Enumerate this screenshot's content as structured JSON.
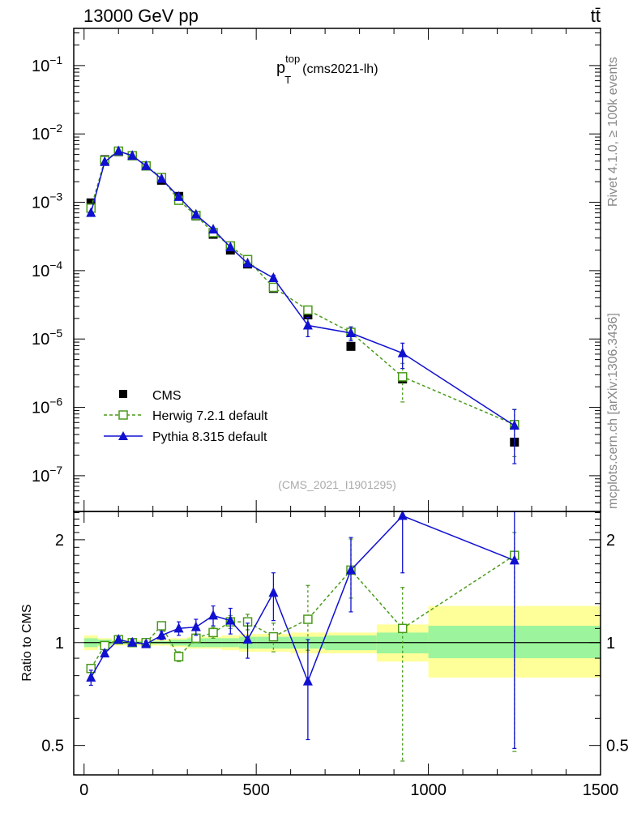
{
  "header": {
    "collision": "13000 GeV pp",
    "process": "tt̄"
  },
  "side_labels": {
    "rivet": "Rivet 4.1.0, ≥ 100k events",
    "mcplots": "mcplots.cern.ch [arXiv:1306.3436]"
  },
  "analysis_id": "(CMS_2021_I1901295)",
  "chart_data": {
    "type": "scatter",
    "title": {
      "base": "p",
      "sup": "top",
      "sub": "T",
      "suffix": "(cms2021-lh)"
    },
    "x": [
      20,
      60,
      100,
      140,
      180,
      225,
      275,
      325,
      375,
      425,
      475,
      550,
      650,
      775,
      925,
      1250
    ],
    "main": {
      "yscale": "log",
      "ylim": [
        3e-08,
        0.35
      ],
      "y_tick_labels": [
        {
          "value": 1e-07,
          "base": "10",
          "exp": "−7"
        },
        {
          "value": 1e-06,
          "base": "10",
          "exp": "−6"
        },
        {
          "value": 1e-05,
          "base": "10",
          "exp": "−5"
        },
        {
          "value": 0.0001,
          "base": "10",
          "exp": "−4"
        },
        {
          "value": 0.001,
          "base": "10",
          "exp": "−3"
        },
        {
          "value": 0.01,
          "base": "10",
          "exp": "−2"
        },
        {
          "value": 0.1,
          "base": "10",
          "exp": "−1"
        }
      ],
      "legend_position": "bottom-left",
      "series": [
        {
          "name": "CMS",
          "color": "#000000",
          "marker": "filled-square",
          "line": "none",
          "values": [
            0.00098,
            0.0042,
            0.0055,
            0.0048,
            0.0034,
            0.0021,
            0.00122,
            0.00063,
            0.00034,
            0.0002,
            0.000125,
            5.5e-05,
            2.25e-05,
            7.8e-06,
            2.6e-06,
            3.1e-07
          ]
        },
        {
          "name": "Herwig 7.2.1 default",
          "color": "#4a9a1a",
          "marker": "open-square",
          "line": "dashed",
          "values": [
            0.00082,
            0.0041,
            0.0056,
            0.0048,
            0.0034,
            0.0023,
            0.00107,
            0.00064,
            0.00036,
            0.00023,
            0.000145,
            5.7e-05,
            2.65e-05,
            1.25e-05,
            2.8e-06,
            5.6e-07
          ],
          "err_lo": [
            0,
            0,
            0,
            0,
            0,
            0,
            0,
            0,
            0,
            0,
            0,
            0,
            0,
            2.5e-06,
            1.6e-06,
            3.7e-07
          ],
          "err_hi": [
            0,
            0,
            0,
            0,
            0,
            0,
            0,
            0,
            0,
            0,
            0,
            0,
            0,
            2.5e-06,
            1.6e-06,
            3.7e-07
          ]
        },
        {
          "name": "Pythia 8.315 default",
          "color": "#1010d0",
          "marker": "filled-triangle",
          "line": "solid",
          "values": [
            0.0007,
            0.0039,
            0.0056,
            0.0048,
            0.0034,
            0.0022,
            0.0012,
            0.00066,
            0.0004,
            0.00022,
            0.000128,
            7.8e-05,
            1.58e-05,
            1.22e-05,
            6.2e-06,
            5.4e-07
          ],
          "err_lo": [
            0,
            0,
            0,
            0,
            0,
            0,
            0,
            0,
            0,
            0,
            0,
            7.7e-06,
            5e-06,
            2.8e-06,
            2.5e-06,
            3.9e-07
          ],
          "err_hi": [
            0,
            0,
            0,
            0,
            0,
            0,
            0,
            0,
            0,
            0,
            0,
            7.7e-06,
            5e-06,
            2.8e-06,
            2.5e-06,
            3.9e-07
          ]
        }
      ]
    },
    "ratio": {
      "ylabel": "Ratio to CMS",
      "yscale": "log",
      "ylim": [
        0.41,
        2.42
      ],
      "y_ticks": [
        0.5,
        1,
        2
      ],
      "y_tick_labels": [
        "0.5",
        "1",
        "2"
      ],
      "band_edges": [
        0,
        40,
        80,
        120,
        160,
        200,
        250,
        300,
        350,
        400,
        450,
        500,
        600,
        700,
        850,
        1000,
        1500
      ],
      "band_stat_lo": [
        0.97,
        0.98,
        0.99,
        0.99,
        0.99,
        0.99,
        0.98,
        0.97,
        0.97,
        0.97,
        0.96,
        0.96,
        0.96,
        0.95,
        0.93,
        0.9
      ],
      "band_stat_hi": [
        1.03,
        1.02,
        1.01,
        1.01,
        1.01,
        1.01,
        1.02,
        1.03,
        1.03,
        1.03,
        1.04,
        1.04,
        1.04,
        1.05,
        1.07,
        1.12
      ],
      "band_tot_lo": [
        0.95,
        0.97,
        0.98,
        0.98,
        0.98,
        0.98,
        0.97,
        0.96,
        0.96,
        0.95,
        0.94,
        0.94,
        0.93,
        0.93,
        0.88,
        0.79
      ],
      "band_tot_hi": [
        1.05,
        1.03,
        1.02,
        1.02,
        1.02,
        1.02,
        1.03,
        1.04,
        1.04,
        1.05,
        1.06,
        1.06,
        1.07,
        1.07,
        1.13,
        1.28
      ],
      "series": [
        {
          "name": "Herwig 7.2.1 default",
          "color": "#4a9a1a",
          "marker": "open-square",
          "line": "dashed",
          "values": [
            0.84,
            0.98,
            1.02,
            1.0,
            1.0,
            1.12,
            0.91,
            1.03,
            1.07,
            1.15,
            1.15,
            1.04,
            1.17,
            1.63,
            1.1,
            1.8
          ],
          "err_lo": [
            0,
            0,
            0,
            0,
            0,
            0.03,
            0.03,
            0.03,
            0.04,
            0.05,
            0.06,
            0.1,
            0.22,
            0.28,
            0.65,
            1.32
          ],
          "err_hi": [
            0,
            0,
            0,
            0,
            0,
            0.03,
            0.03,
            0.03,
            0.04,
            0.05,
            0.06,
            0.1,
            0.3,
            0.38,
            0.35,
            0.3
          ]
        },
        {
          "name": "Pythia 8.315 default",
          "color": "#1010d0",
          "marker": "filled-triangle",
          "line": "solid",
          "values": [
            0.79,
            0.93,
            1.02,
            1.0,
            0.99,
            1.05,
            1.1,
            1.11,
            1.2,
            1.16,
            1.02,
            1.4,
            0.77,
            1.63,
            2.35,
            1.74
          ],
          "err_lo": [
            0.04,
            0.02,
            0.02,
            0.02,
            0.02,
            0.03,
            0.05,
            0.06,
            0.08,
            0.1,
            0.12,
            0.24,
            0.25,
            0.4,
            0.75,
            1.25
          ],
          "err_hi": [
            0.04,
            0.02,
            0.02,
            0.02,
            0.02,
            0.03,
            0.05,
            0.06,
            0.08,
            0.1,
            0.12,
            0.2,
            0.25,
            0.4,
            0.6,
            0.68
          ]
        }
      ]
    },
    "xaxis": {
      "lim": [
        -30,
        1500
      ],
      "tick_values": [
        0,
        500,
        1000,
        1500
      ],
      "tick_labels": [
        "0",
        "500",
        "1000",
        "1500"
      ]
    },
    "colors": {
      "band_stat": "#9cf59c",
      "band_total": "#ffff99",
      "frame": "#000000",
      "watermark": "#888888"
    }
  }
}
